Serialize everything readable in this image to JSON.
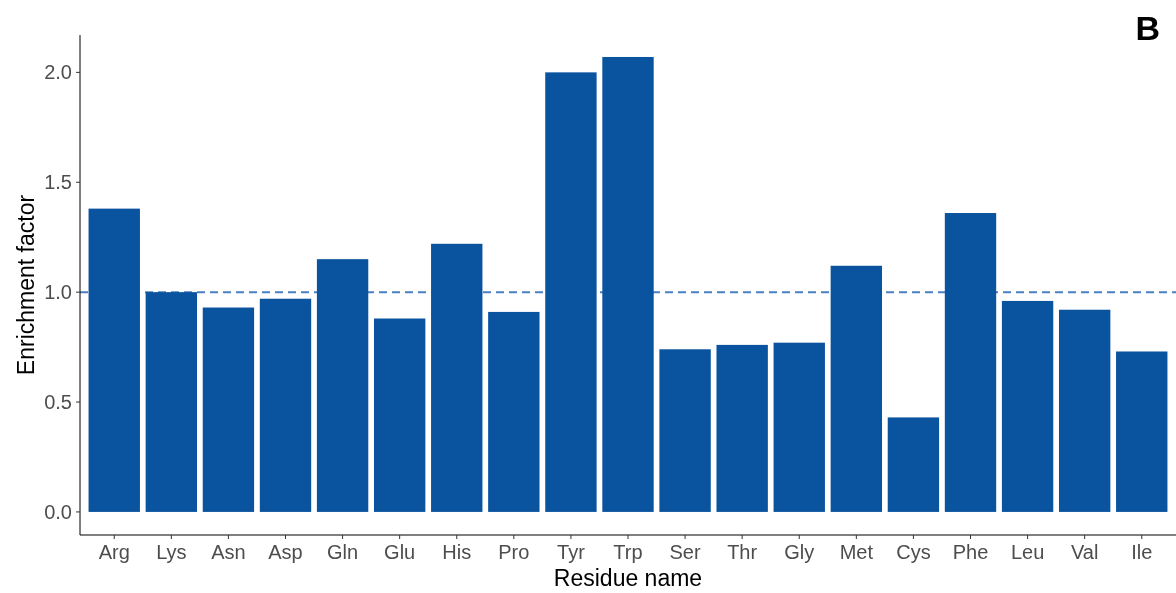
{
  "chart_data": {
    "type": "bar",
    "categories": [
      "Arg",
      "Lys",
      "Asn",
      "Asp",
      "Gln",
      "Glu",
      "His",
      "Pro",
      "Tyr",
      "Trp",
      "Ser",
      "Thr",
      "Gly",
      "Met",
      "Cys",
      "Phe",
      "Leu",
      "Val",
      "Ile"
    ],
    "values": [
      1.38,
      1.0,
      0.93,
      0.97,
      1.15,
      0.88,
      1.22,
      0.91,
      2.0,
      2.07,
      0.74,
      0.76,
      0.77,
      1.12,
      0.43,
      1.36,
      0.96,
      0.92,
      0.73
    ],
    "color": "#0a539e",
    "xlabel": "Residue name",
    "ylabel": "Enrichment factor",
    "ylim": [
      -0.105,
      2.17
    ],
    "yticks": [
      {
        "value": 0,
        "label": "0.0"
      },
      {
        "value": 0.5,
        "label": "0.5"
      },
      {
        "value": 1,
        "label": "1.0"
      },
      {
        "value": 1.5,
        "label": "1.5"
      },
      {
        "value": 2,
        "label": "2.0"
      }
    ],
    "ref_lines": [
      {
        "axis": "y",
        "value": 1,
        "color": "#4a7fc1",
        "line_style": "dashed"
      }
    ],
    "annotations": [
      "B"
    ],
    "grid": false
  }
}
